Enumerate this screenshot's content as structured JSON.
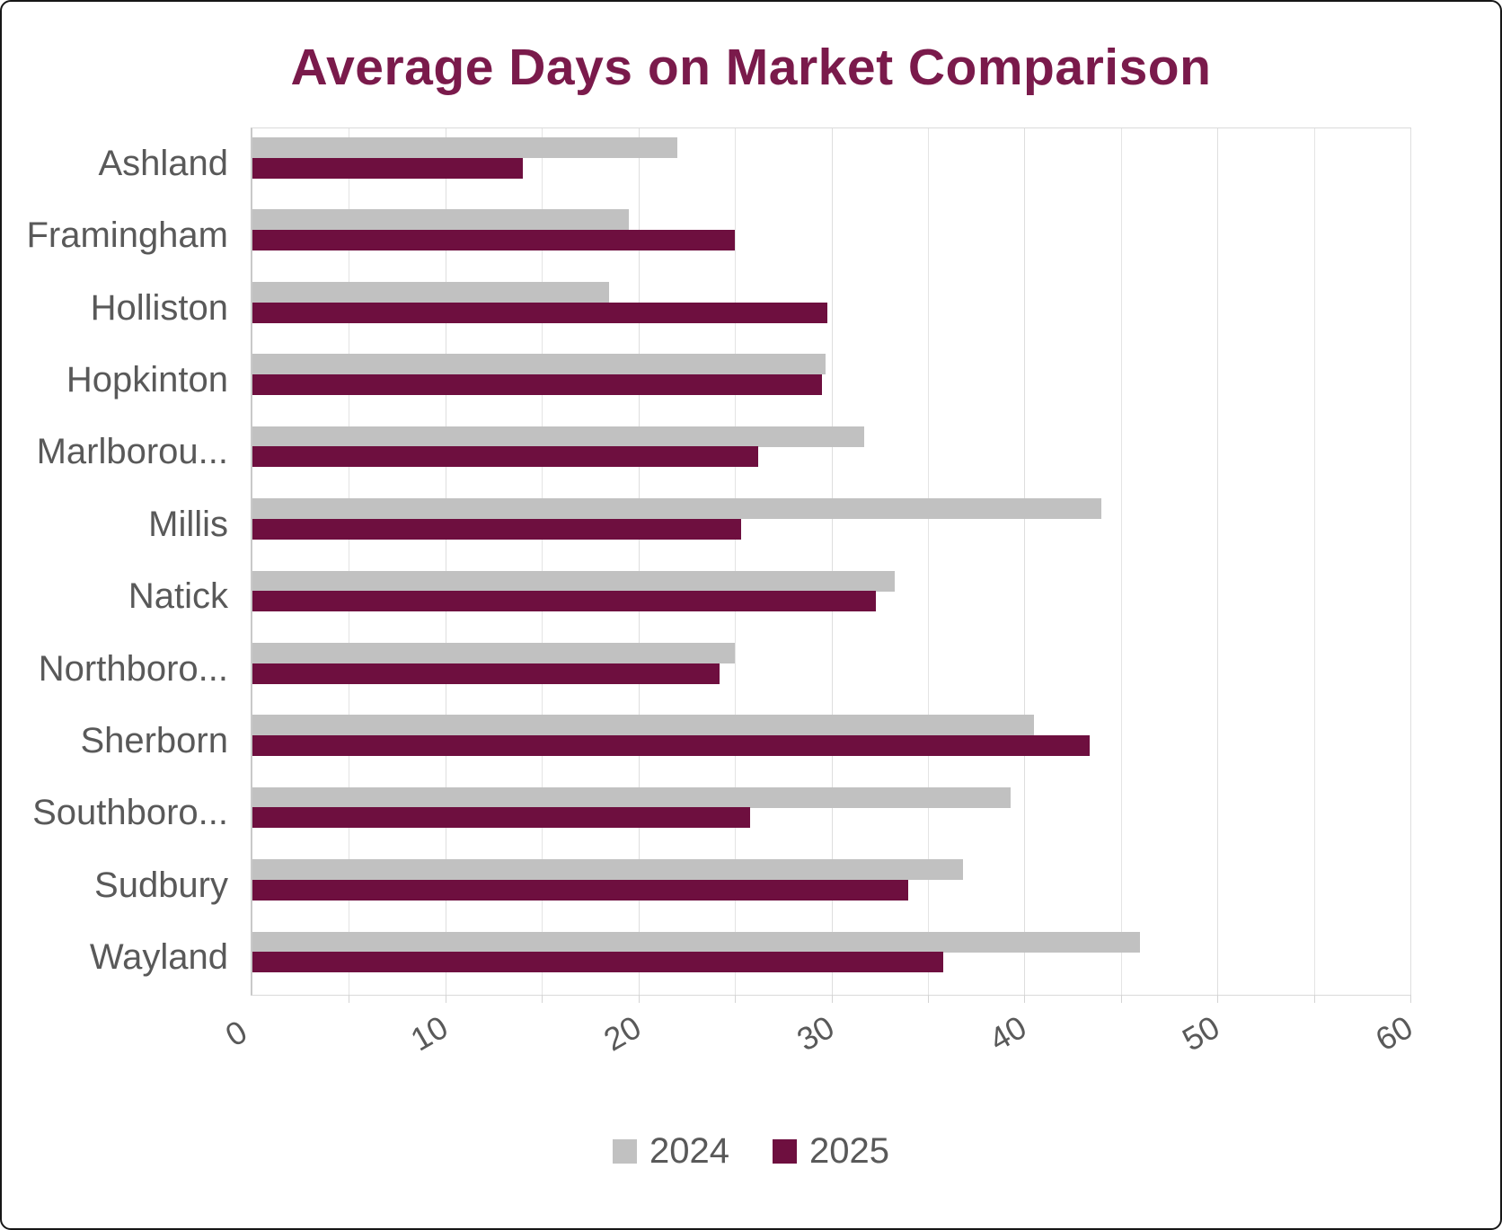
{
  "title": "Average Days on Market Comparison",
  "colors": {
    "title": "#7A1A4B",
    "bar_2024": "#C1C1C1",
    "bar_2025": "#6E0F3F",
    "axis_text": "#595959",
    "gridline": "#E4E4E4",
    "plot_border": "#DADADA"
  },
  "legend": {
    "items": [
      {
        "label": "2024",
        "color": "#C1C1C1"
      },
      {
        "label": "2025",
        "color": "#6E0F3F"
      }
    ]
  },
  "chart_data": {
    "type": "bar",
    "orientation": "horizontal",
    "title": "Average Days on Market Comparison",
    "categories": [
      "Ashland",
      "Framingham",
      "Holliston",
      "Hopkinton",
      "Marlborou...",
      "Millis",
      "Natick",
      "Northboro...",
      "Sherborn",
      "Southboro...",
      "Sudbury",
      "Wayland"
    ],
    "series": [
      {
        "name": "2024",
        "color": "#C1C1C1",
        "values": [
          22,
          19.5,
          18.5,
          29.7,
          31.7,
          44,
          33.3,
          25,
          40.5,
          39.3,
          36.8,
          46
        ]
      },
      {
        "name": "2025",
        "color": "#6E0F3F",
        "values": [
          14,
          25,
          29.8,
          29.5,
          26.2,
          25.3,
          32.3,
          24.2,
          43.4,
          25.8,
          34,
          35.8
        ]
      }
    ],
    "xlabel": "",
    "ylabel": "",
    "xlim": [
      0,
      60
    ],
    "x_ticks": [
      0,
      10,
      20,
      30,
      40,
      50,
      60
    ],
    "gridline_step": 5,
    "grid": "on",
    "legend_position": "bottom"
  }
}
